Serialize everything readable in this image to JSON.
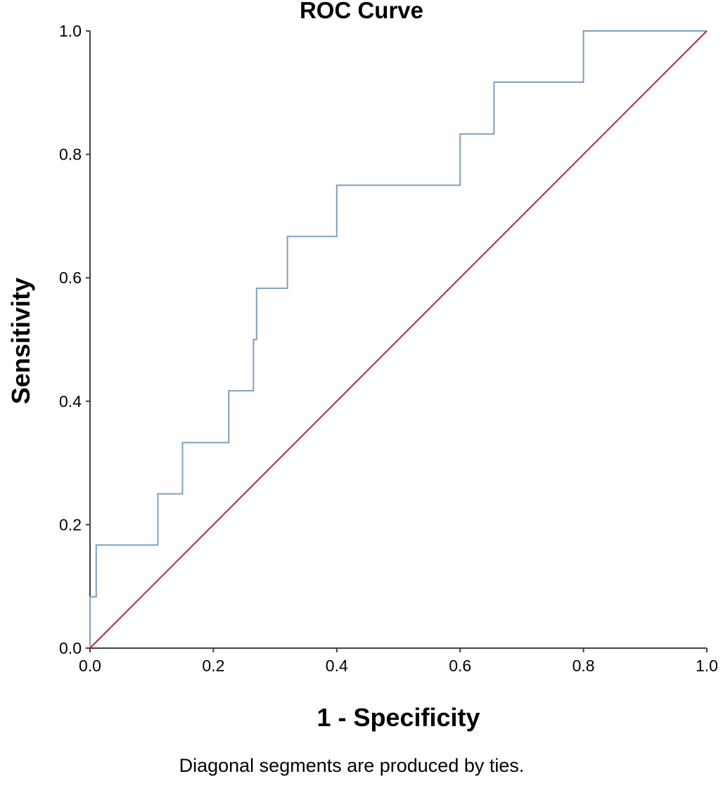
{
  "chart_data": {
    "type": "line",
    "title": "ROC Curve",
    "xlabel": "1 - Specificity",
    "ylabel": "Sensitivity",
    "xlim": [
      0,
      1
    ],
    "ylim": [
      0,
      1
    ],
    "x_ticks": [
      "0.0",
      "0.2",
      "0.4",
      "0.6",
      "0.8",
      "1.0"
    ],
    "y_ticks": [
      "0.0",
      "0.2",
      "0.4",
      "0.6",
      "0.8",
      "1.0"
    ],
    "grid": false,
    "legend": "none",
    "series": [
      {
        "color": "#7f9fbe",
        "x": [
          0,
          0,
          0.01,
          0.01,
          0.11,
          0.11,
          0.15,
          0.15,
          0.225,
          0.225,
          0.265,
          0.265,
          0.27,
          0.27,
          0.32,
          0.32,
          0.4,
          0.4,
          0.6,
          0.6,
          0.655,
          0.655,
          0.8,
          0.8,
          1.0
        ],
        "y": [
          0,
          0.083,
          0.083,
          0.167,
          0.167,
          0.25,
          0.25,
          0.333,
          0.333,
          0.417,
          0.417,
          0.5,
          0.5,
          0.583,
          0.583,
          0.667,
          0.667,
          0.75,
          0.75,
          0.833,
          0.833,
          0.917,
          0.917,
          1.0,
          1.0
        ]
      },
      {
        "color": "#a0304f",
        "x": [
          0,
          1
        ],
        "y": [
          0,
          1
        ]
      }
    ],
    "footnote": "Diagonal segments are produced by ties."
  }
}
